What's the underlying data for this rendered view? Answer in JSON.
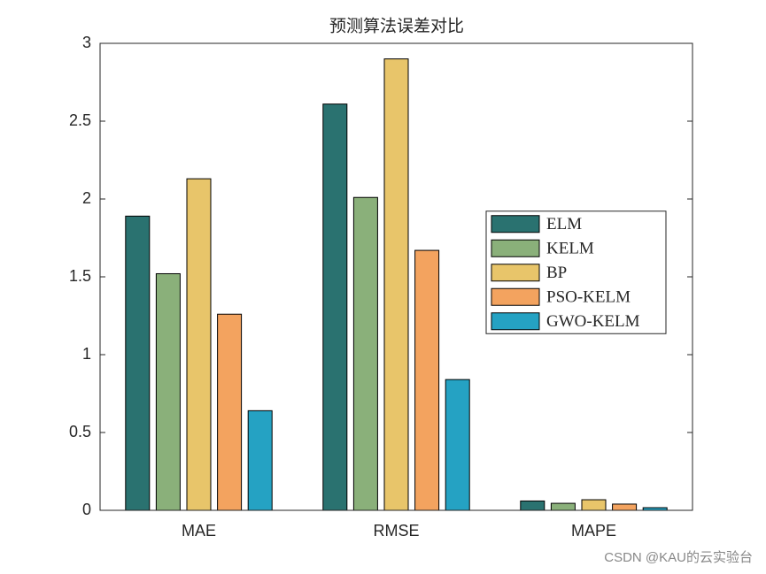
{
  "chart_data": {
    "type": "bar",
    "title": "预测算法误差对比",
    "categories": [
      "MAE",
      "RMSE",
      "MAPE"
    ],
    "series": [
      {
        "name": "ELM",
        "color": "#2a7270",
        "values": [
          1.89,
          2.61,
          0.06
        ]
      },
      {
        "name": "KELM",
        "color": "#8ab07a",
        "values": [
          1.52,
          2.01,
          0.045
        ]
      },
      {
        "name": "BP",
        "color": "#e8c56a",
        "values": [
          2.13,
          2.9,
          0.068
        ]
      },
      {
        "name": "PSO-KELM",
        "color": "#f3a35f",
        "values": [
          1.26,
          1.67,
          0.04
        ]
      },
      {
        "name": "GWO-KELM",
        "color": "#25a2c3",
        "values": [
          0.64,
          0.84,
          0.017
        ]
      }
    ],
    "ylim": [
      0,
      3
    ],
    "yticks": [
      0,
      0.5,
      1,
      1.5,
      2,
      2.5,
      3
    ],
    "grid": false,
    "legend": "east"
  },
  "watermark": "CSDN @KAU的云实验台"
}
